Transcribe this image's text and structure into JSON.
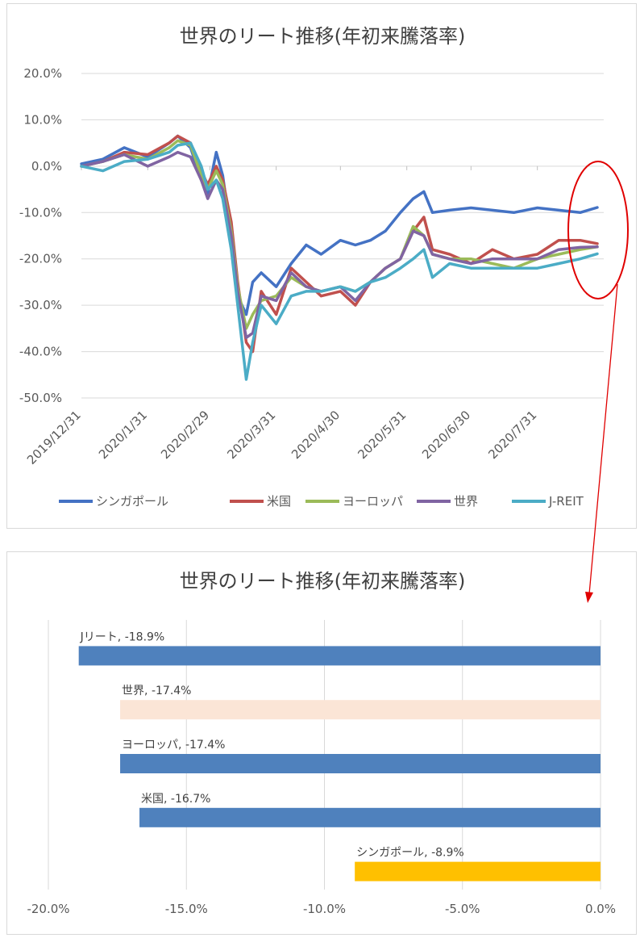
{
  "chart_data": [
    {
      "type": "line",
      "title": "世界のリート推移(年初来騰落率)",
      "x_ticks": [
        "2019/12/31",
        "2020/1/31",
        "2020/2/29",
        "2020/3/31",
        "2020/4/30",
        "2020/5/31",
        "2020/6/30",
        "2020/7/31"
      ],
      "y_ticks": [
        "20.0%",
        "10.0%",
        "0.0%",
        "-10.0%",
        "-20.0%",
        "-30.0%",
        "-40.0%",
        "-50.0%"
      ],
      "ylim": [
        -50,
        20
      ],
      "grid": true,
      "legend_position": "bottom",
      "series": [
        {
          "name": "シンガポール",
          "color": "#4472c4",
          "points": [
            [
              "2019-12-31",
              0.5
            ],
            [
              "2020-01-10",
              1.5
            ],
            [
              "2020-01-20",
              4
            ],
            [
              "2020-01-31",
              2
            ],
            [
              "2020-02-10",
              5
            ],
            [
              "2020-02-14",
              6.5
            ],
            [
              "2020-02-20",
              4
            ],
            [
              "2020-02-25",
              -3
            ],
            [
              "2020-02-28",
              -6
            ],
            [
              "2020-03-03",
              3
            ],
            [
              "2020-03-06",
              -2
            ],
            [
              "2020-03-10",
              -15
            ],
            [
              "2020-03-13",
              -28
            ],
            [
              "2020-03-17",
              -32
            ],
            [
              "2020-03-20",
              -25
            ],
            [
              "2020-03-24",
              -23
            ],
            [
              "2020-03-31",
              -26
            ],
            [
              "2020-04-07",
              -21
            ],
            [
              "2020-04-14",
              -17
            ],
            [
              "2020-04-21",
              -19
            ],
            [
              "2020-04-30",
              -16
            ],
            [
              "2020-05-07",
              -17
            ],
            [
              "2020-05-14",
              -16
            ],
            [
              "2020-05-21",
              -14
            ],
            [
              "2020-05-28",
              -10
            ],
            [
              "2020-06-03",
              -7
            ],
            [
              "2020-06-08",
              -5.5
            ],
            [
              "2020-06-12",
              -10
            ],
            [
              "2020-06-20",
              -9.5
            ],
            [
              "2020-06-30",
              -9
            ],
            [
              "2020-07-10",
              -9.5
            ],
            [
              "2020-07-20",
              -10
            ],
            [
              "2020-07-31",
              -9
            ],
            [
              "2020-08-10",
              -9.5
            ],
            [
              "2020-08-20",
              -10
            ],
            [
              "2020-08-28",
              -8.9
            ]
          ]
        },
        {
          "name": "米国",
          "color": "#c0504d",
          "points": [
            [
              "2019-12-31",
              0
            ],
            [
              "2020-01-10",
              1
            ],
            [
              "2020-01-20",
              3
            ],
            [
              "2020-01-31",
              2.5
            ],
            [
              "2020-02-10",
              5
            ],
            [
              "2020-02-14",
              6.5
            ],
            [
              "2020-02-20",
              5
            ],
            [
              "2020-02-25",
              -1
            ],
            [
              "2020-02-28",
              -4
            ],
            [
              "2020-03-03",
              0
            ],
            [
              "2020-03-06",
              -3
            ],
            [
              "2020-03-10",
              -12
            ],
            [
              "2020-03-13",
              -25
            ],
            [
              "2020-03-17",
              -38
            ],
            [
              "2020-03-20",
              -40
            ],
            [
              "2020-03-24",
              -27
            ],
            [
              "2020-03-31",
              -32
            ],
            [
              "2020-04-07",
              -22
            ],
            [
              "2020-04-14",
              -25
            ],
            [
              "2020-04-21",
              -28
            ],
            [
              "2020-04-30",
              -27
            ],
            [
              "2020-05-07",
              -30
            ],
            [
              "2020-05-14",
              -25
            ],
            [
              "2020-05-21",
              -22
            ],
            [
              "2020-05-28",
              -20
            ],
            [
              "2020-06-03",
              -14
            ],
            [
              "2020-06-08",
              -11
            ],
            [
              "2020-06-12",
              -18
            ],
            [
              "2020-06-20",
              -19
            ],
            [
              "2020-06-30",
              -21
            ],
            [
              "2020-07-10",
              -18
            ],
            [
              "2020-07-20",
              -20
            ],
            [
              "2020-07-31",
              -19
            ],
            [
              "2020-08-10",
              -16
            ],
            [
              "2020-08-20",
              -16
            ],
            [
              "2020-08-28",
              -16.7
            ]
          ]
        },
        {
          "name": "ヨーロッパ",
          "color": "#9bbb59",
          "points": [
            [
              "2019-12-31",
              0
            ],
            [
              "2020-01-10",
              1
            ],
            [
              "2020-01-20",
              2.5
            ],
            [
              "2020-01-31",
              1.5
            ],
            [
              "2020-02-10",
              4
            ],
            [
              "2020-02-14",
              5.5
            ],
            [
              "2020-02-20",
              4.5
            ],
            [
              "2020-02-25",
              -2
            ],
            [
              "2020-02-28",
              -5
            ],
            [
              "2020-03-03",
              -1
            ],
            [
              "2020-03-06",
              -4
            ],
            [
              "2020-03-10",
              -14
            ],
            [
              "2020-03-13",
              -26
            ],
            [
              "2020-03-17",
              -35
            ],
            [
              "2020-03-20",
              -32
            ],
            [
              "2020-03-24",
              -29
            ],
            [
              "2020-03-31",
              -28
            ],
            [
              "2020-04-07",
              -24
            ],
            [
              "2020-04-14",
              -26
            ],
            [
              "2020-04-21",
              -27
            ],
            [
              "2020-04-30",
              -26
            ],
            [
              "2020-05-07",
              -27
            ],
            [
              "2020-05-14",
              -25
            ],
            [
              "2020-05-21",
              -22
            ],
            [
              "2020-05-28",
              -20
            ],
            [
              "2020-06-03",
              -13
            ],
            [
              "2020-06-08",
              -15
            ],
            [
              "2020-06-12",
              -19
            ],
            [
              "2020-06-20",
              -20
            ],
            [
              "2020-06-30",
              -20
            ],
            [
              "2020-07-10",
              -21
            ],
            [
              "2020-07-20",
              -22
            ],
            [
              "2020-07-31",
              -20
            ],
            [
              "2020-08-10",
              -19
            ],
            [
              "2020-08-20",
              -18
            ],
            [
              "2020-08-28",
              -17.4
            ]
          ]
        },
        {
          "name": "世界",
          "color": "#8064a2",
          "points": [
            [
              "2019-12-31",
              0
            ],
            [
              "2020-01-10",
              1
            ],
            [
              "2020-01-20",
              2.5
            ],
            [
              "2020-01-31",
              0
            ],
            [
              "2020-02-10",
              2
            ],
            [
              "2020-02-14",
              3
            ],
            [
              "2020-02-20",
              2
            ],
            [
              "2020-02-25",
              -3
            ],
            [
              "2020-02-28",
              -7
            ],
            [
              "2020-03-03",
              -3
            ],
            [
              "2020-03-06",
              -5
            ],
            [
              "2020-03-10",
              -15
            ],
            [
              "2020-03-13",
              -27
            ],
            [
              "2020-03-17",
              -37
            ],
            [
              "2020-03-20",
              -36
            ],
            [
              "2020-03-24",
              -28
            ],
            [
              "2020-03-31",
              -29
            ],
            [
              "2020-04-07",
              -23
            ],
            [
              "2020-04-14",
              -26
            ],
            [
              "2020-04-21",
              -27
            ],
            [
              "2020-04-30",
              -26
            ],
            [
              "2020-05-07",
              -29
            ],
            [
              "2020-05-14",
              -25
            ],
            [
              "2020-05-21",
              -22
            ],
            [
              "2020-05-28",
              -20
            ],
            [
              "2020-06-03",
              -14
            ],
            [
              "2020-06-08",
              -15
            ],
            [
              "2020-06-12",
              -19
            ],
            [
              "2020-06-20",
              -20
            ],
            [
              "2020-06-30",
              -21
            ],
            [
              "2020-07-10",
              -20
            ],
            [
              "2020-07-20",
              -20
            ],
            [
              "2020-07-31",
              -20
            ],
            [
              "2020-08-10",
              -18
            ],
            [
              "2020-08-20",
              -17.5
            ],
            [
              "2020-08-28",
              -17.4
            ]
          ]
        },
        {
          "name": "J-REIT",
          "color": "#4bacc6",
          "points": [
            [
              "2019-12-31",
              0
            ],
            [
              "2020-01-10",
              -1
            ],
            [
              "2020-01-20",
              1
            ],
            [
              "2020-01-31",
              1.5
            ],
            [
              "2020-02-10",
              3
            ],
            [
              "2020-02-14",
              4.5
            ],
            [
              "2020-02-20",
              5
            ],
            [
              "2020-02-25",
              0
            ],
            [
              "2020-02-28",
              -5
            ],
            [
              "2020-03-03",
              -3
            ],
            [
              "2020-03-06",
              -7
            ],
            [
              "2020-03-10",
              -18
            ],
            [
              "2020-03-13",
              -30
            ],
            [
              "2020-03-17",
              -46
            ],
            [
              "2020-03-20",
              -38
            ],
            [
              "2020-03-24",
              -30
            ],
            [
              "2020-03-31",
              -34
            ],
            [
              "2020-04-07",
              -28
            ],
            [
              "2020-04-14",
              -27
            ],
            [
              "2020-04-21",
              -27
            ],
            [
              "2020-04-30",
              -26
            ],
            [
              "2020-05-07",
              -27
            ],
            [
              "2020-05-14",
              -25
            ],
            [
              "2020-05-21",
              -24
            ],
            [
              "2020-05-28",
              -22
            ],
            [
              "2020-06-03",
              -20
            ],
            [
              "2020-06-08",
              -18
            ],
            [
              "2020-06-12",
              -24
            ],
            [
              "2020-06-20",
              -21
            ],
            [
              "2020-06-30",
              -22
            ],
            [
              "2020-07-10",
              -22
            ],
            [
              "2020-07-20",
              -22
            ],
            [
              "2020-07-31",
              -22
            ],
            [
              "2020-08-10",
              -21
            ],
            [
              "2020-08-20",
              -20
            ],
            [
              "2020-08-28",
              -18.9
            ]
          ]
        }
      ]
    },
    {
      "type": "bar",
      "orientation": "horizontal",
      "title": "世界のリート推移(年初来騰落率)",
      "xlim": [
        -20,
        0
      ],
      "x_ticks": [
        "-20.0%",
        "-15.0%",
        "-10.0%",
        "-5.0%",
        "0.0%"
      ],
      "grid": true,
      "bars": [
        {
          "category": "Jリート",
          "value": -18.9,
          "label": "Jリート, -18.9%",
          "color": "#4f81bd"
        },
        {
          "category": "世界",
          "value": -17.4,
          "label": "世界, -17.4%",
          "color": "#fbe5d6"
        },
        {
          "category": "ヨーロッパ",
          "value": -17.4,
          "label": "ヨーロッパ, -17.4%",
          "color": "#4f81bd"
        },
        {
          "category": "米国",
          "value": -16.7,
          "label": "米国, -16.7%",
          "color": "#4f81bd"
        },
        {
          "category": "シンガポール",
          "value": -8.9,
          "label": "シンガポール, -8.9%",
          "color": "#ffc000"
        }
      ]
    }
  ],
  "annotation": {
    "color": "#e00000"
  }
}
